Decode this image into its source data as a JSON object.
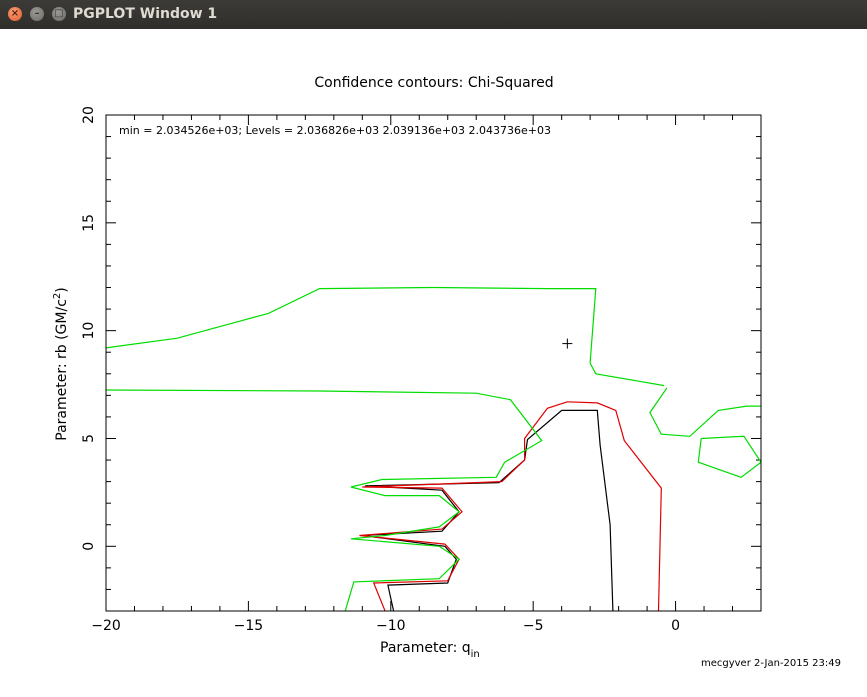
{
  "window": {
    "title": "PGPLOT Window 1",
    "close_icon": "×",
    "minimize_icon": "–",
    "maximize_icon": "□"
  },
  "chart_data": {
    "type": "contour",
    "title": "Confidence contours: Chi-Squared",
    "info_text": "min = 2.034526e+03; Levels =  2.036826e+03 2.039136e+03 2.043736e+03",
    "xlabel_main": "Parameter: q",
    "xlabel_sub": "in",
    "ylabel_main": "Parameter: rb (GM/c",
    "ylabel_sup": "2",
    "ylabel_end": ")",
    "footer": "mecgyver  2-Jan-2015 23:49",
    "xlim": [
      -20,
      3
    ],
    "ylim": [
      -3,
      20
    ],
    "x_ticks": [
      -20,
      -15,
      -10,
      -5,
      0
    ],
    "y_ticks": [
      0,
      5,
      10,
      15,
      20
    ],
    "x_tick_labels": [
      "−20",
      "−15",
      "−10",
      "−5",
      "0"
    ],
    "y_tick_labels": [
      "0",
      "5",
      "10",
      "15",
      "20"
    ],
    "x_minor_step": 1,
    "y_minor_step": 1,
    "min_marker": {
      "x": -3.8,
      "y": 9.4
    },
    "levels": [
      {
        "name": "2.036826e+03",
        "color": "#000000",
        "paths": [
          [
            [
              -9.9,
              -3.0
            ],
            [
              -10.1,
              -1.8
            ],
            [
              -8.0,
              -1.7
            ],
            [
              -7.7,
              -0.6
            ],
            [
              -8.1,
              0.0
            ],
            [
              -11.0,
              0.5
            ],
            [
              -8.2,
              0.7
            ],
            [
              -7.6,
              1.6
            ],
            [
              -8.2,
              2.6
            ],
            [
              -10.9,
              2.8
            ],
            [
              -6.2,
              2.95
            ],
            [
              -5.3,
              4.0
            ],
            [
              -5.2,
              4.95
            ],
            [
              -4.0,
              6.3
            ],
            [
              -2.75,
              6.3
            ],
            [
              -2.65,
              4.7
            ],
            [
              -2.3,
              1.0
            ],
            [
              -2.2,
              -3.0
            ]
          ]
        ]
      },
      {
        "name": "2.039136e+03",
        "color": "#e00000",
        "paths": [
          [
            [
              -10.2,
              -3.0
            ],
            [
              -10.6,
              -1.7
            ],
            [
              -8.0,
              -1.6
            ],
            [
              -7.6,
              -0.6
            ],
            [
              -8.1,
              0.1
            ],
            [
              -11.1,
              0.5
            ],
            [
              -8.2,
              0.8
            ],
            [
              -7.5,
              1.6
            ],
            [
              -8.2,
              2.7
            ],
            [
              -11.0,
              2.75
            ],
            [
              -6.1,
              3.0
            ],
            [
              -5.3,
              4.0
            ],
            [
              -5.3,
              5.0
            ],
            [
              -4.5,
              6.4
            ],
            [
              -3.8,
              6.7
            ],
            [
              -2.75,
              6.65
            ],
            [
              -2.1,
              6.3
            ],
            [
              -1.8,
              4.9
            ],
            [
              -0.5,
              2.7
            ],
            [
              -0.6,
              -3.0
            ]
          ]
        ]
      },
      {
        "name": "2.043736e+03",
        "color": "#00dd00",
        "paths": [
          [
            [
              -20,
              9.2
            ],
            [
              -17.5,
              9.65
            ],
            [
              -14.3,
              10.8
            ],
            [
              -12.5,
              11.95
            ],
            [
              -8.5,
              12.0
            ],
            [
              -4.5,
              11.95
            ],
            [
              -2.8,
              11.95
            ],
            [
              -3.0,
              8.5
            ],
            [
              -2.8,
              8.0
            ],
            [
              -0.4,
              7.45
            ]
          ],
          [
            [
              -20,
              7.25
            ],
            [
              -12.5,
              7.2
            ],
            [
              -7.0,
              7.1
            ],
            [
              -5.8,
              6.8
            ],
            [
              -4.7,
              4.9
            ],
            [
              -6.0,
              3.9
            ],
            [
              -6.3,
              3.2
            ],
            [
              -10.3,
              3.1
            ],
            [
              -11.4,
              2.75
            ],
            [
              -10.2,
              2.35
            ],
            [
              -8.3,
              2.35
            ],
            [
              -7.6,
              1.6
            ],
            [
              -8.3,
              0.9
            ],
            [
              -10.2,
              0.5
            ],
            [
              -11.4,
              0.35
            ],
            [
              -8.3,
              0.0
            ],
            [
              -7.6,
              -0.6
            ],
            [
              -8.3,
              -1.5
            ],
            [
              -11.3,
              -1.65
            ],
            [
              -11.6,
              -3.0
            ]
          ],
          [
            [
              -0.3,
              7.35
            ],
            [
              -0.9,
              6.2
            ],
            [
              -0.5,
              5.2
            ],
            [
              0.5,
              5.1
            ],
            [
              1.5,
              6.3
            ],
            [
              2.5,
              6.5
            ],
            [
              3.0,
              6.5
            ]
          ],
          [
            [
              0.9,
              5.0
            ],
            [
              2.4,
              5.1
            ],
            [
              3.0,
              3.9
            ],
            [
              2.3,
              3.2
            ],
            [
              0.8,
              3.9
            ],
            [
              0.9,
              5.0
            ]
          ]
        ]
      }
    ]
  }
}
